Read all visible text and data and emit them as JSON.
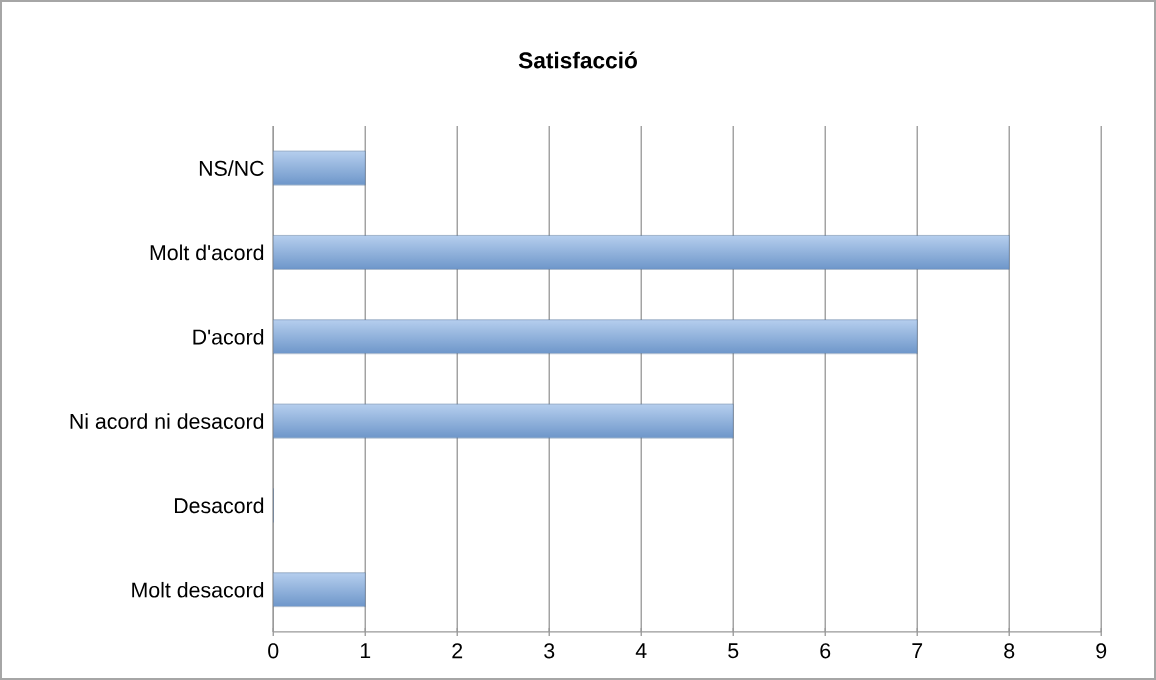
{
  "chart_data": {
    "type": "bar",
    "orientation": "horizontal",
    "title": "Satisfacció",
    "categories": [
      "NS/NC",
      "Molt d'acord",
      "D'acord",
      "Ni acord ni desacord",
      "Desacord",
      "Molt desacord"
    ],
    "values": [
      1,
      8,
      7,
      5,
      0,
      1
    ],
    "color": "#7aa7e0",
    "xlim": [
      0,
      9
    ],
    "xticks": [
      0,
      1,
      2,
      3,
      4,
      5,
      6,
      7,
      8,
      9
    ],
    "grid": "x"
  }
}
